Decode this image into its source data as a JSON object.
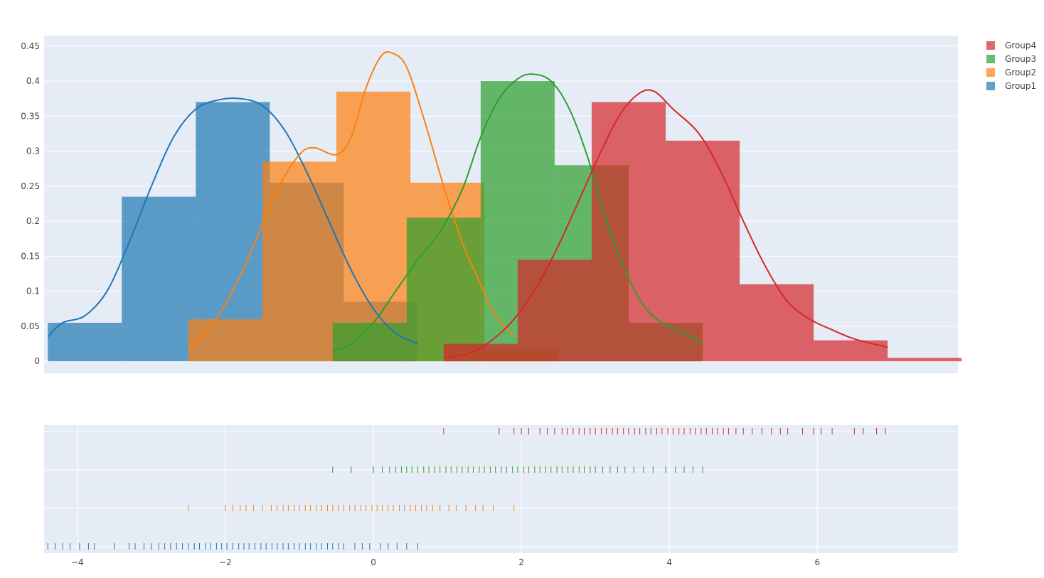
{
  "chart_data": {
    "type": "distplot",
    "title": "",
    "xlabel": "",
    "ylabel": "",
    "xlim": [
      -4.45,
      7.9
    ],
    "ylim": [
      -0.017,
      0.465
    ],
    "background": "#E5ECF6",
    "grid": true,
    "legend_position": "top-right",
    "y_ticks": [
      0,
      0.05,
      0.1,
      0.15,
      0.2,
      0.25,
      0.3,
      0.35,
      0.4,
      0.45
    ],
    "y_tick_labels": [
      "0",
      "0.05",
      "0.1",
      "0.15",
      "0.2",
      "0.25",
      "0.3",
      "0.35",
      "0.4",
      "0.45"
    ],
    "x_ticks": [
      -4,
      -2,
      0,
      2,
      4,
      6
    ],
    "x_tick_labels": [
      "−4",
      "−2",
      "0",
      "2",
      "4",
      "6"
    ],
    "legend_order": [
      "Group4",
      "Group3",
      "Group2",
      "Group1"
    ],
    "series": [
      {
        "name": "Group1",
        "color": "#1f77b4",
        "histogram": {
          "edges": [
            -4.4,
            -3.4,
            -2.4,
            -1.4,
            -0.4,
            0.6
          ],
          "values": [
            0.055,
            0.235,
            0.37,
            0.255,
            0.085
          ]
        },
        "kde": [
          [
            -4.4,
            0.035
          ],
          [
            -4.2,
            0.055
          ],
          [
            -3.9,
            0.065
          ],
          [
            -3.6,
            0.1
          ],
          [
            -3.3,
            0.17
          ],
          [
            -3.0,
            0.25
          ],
          [
            -2.7,
            0.32
          ],
          [
            -2.4,
            0.36
          ],
          [
            -2.1,
            0.373
          ],
          [
            -1.8,
            0.375
          ],
          [
            -1.5,
            0.365
          ],
          [
            -1.2,
            0.33
          ],
          [
            -0.9,
            0.27
          ],
          [
            -0.6,
            0.2
          ],
          [
            -0.3,
            0.13
          ],
          [
            0.0,
            0.075
          ],
          [
            0.3,
            0.04
          ],
          [
            0.6,
            0.025
          ]
        ],
        "rug": [
          -4.4,
          -4.3,
          -4.2,
          -4.1,
          -3.97,
          -3.85,
          -3.77,
          -3.5,
          -3.3,
          -3.22,
          -3.1,
          -3.0,
          -2.9,
          -2.82,
          -2.74,
          -2.66,
          -2.58,
          -2.5,
          -2.42,
          -2.35,
          -2.27,
          -2.2,
          -2.12,
          -2.05,
          -1.98,
          -1.9,
          -1.82,
          -1.75,
          -1.68,
          -1.6,
          -1.52,
          -1.45,
          -1.37,
          -1.3,
          -1.22,
          -1.15,
          -1.07,
          -1.0,
          -0.92,
          -0.85,
          -0.77,
          -0.7,
          -0.62,
          -0.55,
          -0.47,
          -0.4,
          -0.25,
          -0.15,
          -0.05,
          0.1,
          0.2,
          0.32,
          0.45,
          0.6
        ]
      },
      {
        "name": "Group2",
        "color": "#ff7f0e",
        "histogram": {
          "edges": [
            -2.5,
            -1.5,
            -0.5,
            0.5,
            1.5,
            2.5
          ],
          "values": [
            0.06,
            0.285,
            0.385,
            0.255,
            0.015
          ]
        },
        "kde": [
          [
            -2.5,
            0.015
          ],
          [
            -2.2,
            0.05
          ],
          [
            -1.9,
            0.1
          ],
          [
            -1.6,
            0.17
          ],
          [
            -1.3,
            0.245
          ],
          [
            -1.0,
            0.295
          ],
          [
            -0.8,
            0.305
          ],
          [
            -0.5,
            0.295
          ],
          [
            -0.3,
            0.32
          ],
          [
            -0.1,
            0.39
          ],
          [
            0.1,
            0.435
          ],
          [
            0.25,
            0.44
          ],
          [
            0.45,
            0.42
          ],
          [
            0.7,
            0.34
          ],
          [
            0.95,
            0.25
          ],
          [
            1.2,
            0.17
          ],
          [
            1.45,
            0.11
          ],
          [
            1.65,
            0.065
          ],
          [
            1.9,
            0.035
          ]
        ],
        "rug": [
          -2.5,
          -2.0,
          -1.9,
          -1.8,
          -1.72,
          -1.62,
          -1.5,
          -1.38,
          -1.3,
          -1.22,
          -1.15,
          -1.07,
          -1.0,
          -0.92,
          -0.85,
          -0.77,
          -0.7,
          -0.62,
          -0.55,
          -0.47,
          -0.4,
          -0.32,
          -0.25,
          -0.17,
          -0.1,
          -0.02,
          0.05,
          0.12,
          0.2,
          0.27,
          0.35,
          0.42,
          0.5,
          0.57,
          0.65,
          0.72,
          0.8,
          0.9,
          1.02,
          1.12,
          1.25,
          1.38,
          1.48,
          1.62,
          1.9
        ]
      },
      {
        "name": "Group3",
        "color": "#2ca02c",
        "histogram": {
          "edges": [
            -0.55,
            0.45,
            1.45,
            2.45,
            3.45,
            4.45
          ],
          "values": [
            0.055,
            0.205,
            0.4,
            0.28,
            0.055
          ]
        },
        "kde": [
          [
            -0.55,
            0.015
          ],
          [
            -0.3,
            0.025
          ],
          [
            0.0,
            0.055
          ],
          [
            0.3,
            0.1
          ],
          [
            0.6,
            0.145
          ],
          [
            0.9,
            0.185
          ],
          [
            1.2,
            0.245
          ],
          [
            1.45,
            0.32
          ],
          [
            1.7,
            0.375
          ],
          [
            1.95,
            0.403
          ],
          [
            2.15,
            0.41
          ],
          [
            2.4,
            0.4
          ],
          [
            2.65,
            0.36
          ],
          [
            2.9,
            0.29
          ],
          [
            3.15,
            0.2
          ],
          [
            3.4,
            0.13
          ],
          [
            3.65,
            0.08
          ],
          [
            3.9,
            0.055
          ],
          [
            4.2,
            0.04
          ],
          [
            4.45,
            0.025
          ]
        ],
        "rug": [
          -0.55,
          -0.3,
          0.0,
          0.12,
          0.22,
          0.3,
          0.38,
          0.45,
          0.52,
          0.6,
          0.68,
          0.75,
          0.83,
          0.9,
          0.98,
          1.05,
          1.13,
          1.2,
          1.28,
          1.35,
          1.43,
          1.5,
          1.58,
          1.65,
          1.73,
          1.8,
          1.88,
          1.95,
          2.03,
          2.1,
          2.18,
          2.25,
          2.33,
          2.4,
          2.48,
          2.55,
          2.63,
          2.7,
          2.78,
          2.85,
          2.93,
          3.0,
          3.1,
          3.2,
          3.3,
          3.4,
          3.52,
          3.65,
          3.78,
          3.95,
          4.08,
          4.2,
          4.32,
          4.45
        ]
      },
      {
        "name": "Group4",
        "color": "#d62728",
        "histogram": {
          "edges": [
            0.95,
            1.95,
            2.95,
            3.95,
            4.95,
            5.95,
            6.95,
            7.95
          ],
          "values": [
            0.025,
            0.145,
            0.37,
            0.315,
            0.11,
            0.03,
            0.005
          ]
        },
        "kde": [
          [
            0.95,
            0.005
          ],
          [
            1.3,
            0.012
          ],
          [
            1.6,
            0.03
          ],
          [
            1.9,
            0.06
          ],
          [
            2.2,
            0.105
          ],
          [
            2.5,
            0.165
          ],
          [
            2.8,
            0.235
          ],
          [
            3.1,
            0.305
          ],
          [
            3.35,
            0.355
          ],
          [
            3.6,
            0.383
          ],
          [
            3.8,
            0.385
          ],
          [
            4.05,
            0.36
          ],
          [
            4.4,
            0.325
          ],
          [
            4.7,
            0.27
          ],
          [
            5.0,
            0.2
          ],
          [
            5.3,
            0.135
          ],
          [
            5.6,
            0.085
          ],
          [
            5.9,
            0.06
          ],
          [
            6.2,
            0.045
          ],
          [
            6.5,
            0.032
          ],
          [
            6.95,
            0.02
          ]
        ],
        "rug": [
          0.95,
          1.7,
          1.9,
          2.0,
          2.1,
          2.25,
          2.35,
          2.45,
          2.55,
          2.62,
          2.7,
          2.78,
          2.85,
          2.93,
          3.0,
          3.08,
          3.15,
          3.23,
          3.3,
          3.38,
          3.45,
          3.53,
          3.6,
          3.68,
          3.75,
          3.83,
          3.9,
          3.98,
          4.05,
          4.13,
          4.2,
          4.28,
          4.35,
          4.43,
          4.5,
          4.58,
          4.65,
          4.73,
          4.8,
          4.9,
          5.0,
          5.12,
          5.25,
          5.38,
          5.5,
          5.6,
          5.8,
          5.95,
          6.05,
          6.2,
          6.5,
          6.62,
          6.8,
          6.92
        ]
      }
    ]
  }
}
